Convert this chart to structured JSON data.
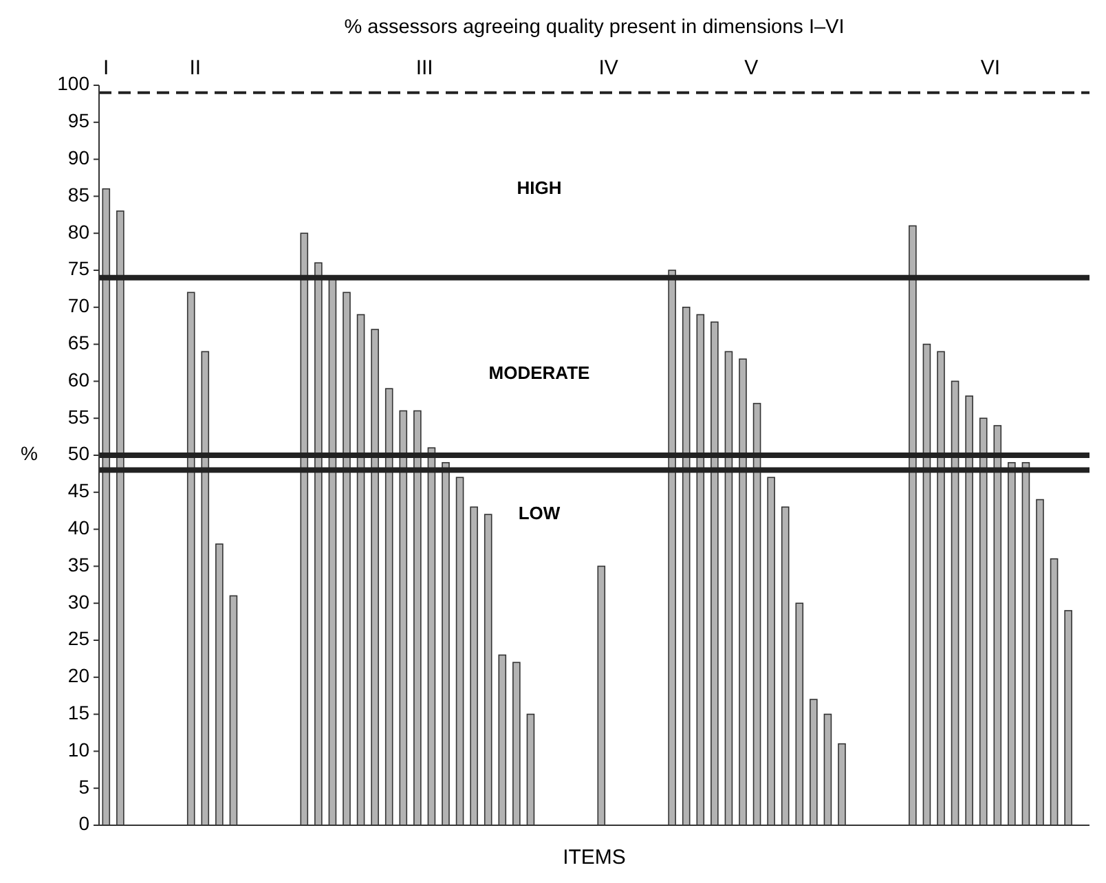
{
  "chart_data": {
    "type": "bar",
    "title": "% assessors agreeing quality present in dimensions I–VI",
    "xlabel": "ITEMS",
    "ylabel": "%",
    "categories": [
      null,
      null,
      null,
      null,
      null,
      null,
      null,
      null,
      null,
      null,
      null,
      null,
      null,
      null,
      null,
      null,
      null,
      null,
      null,
      null,
      null,
      null,
      null,
      null,
      null,
      null,
      null,
      null,
      null,
      null,
      null,
      null,
      null,
      null,
      null,
      null,
      null,
      null,
      null,
      null,
      null,
      null,
      null,
      null,
      null,
      null,
      null,
      null,
      null,
      null,
      null,
      null,
      null,
      null,
      null,
      null,
      null,
      null,
      null,
      null,
      null,
      null,
      null,
      null,
      null,
      null,
      null,
      null,
      null,
      null
    ],
    "values": [
      86,
      83,
      null,
      null,
      null,
      null,
      72,
      64,
      38,
      31,
      null,
      null,
      null,
      null,
      80,
      76,
      74,
      72,
      69,
      67,
      59,
      56,
      56,
      51,
      49,
      47,
      43,
      42,
      23,
      22,
      15,
      null,
      null,
      null,
      null,
      35,
      null,
      null,
      null,
      null,
      75,
      70,
      69,
      68,
      64,
      63,
      57,
      47,
      43,
      30,
      17,
      15,
      11,
      null,
      null,
      null,
      null,
      81,
      65,
      64,
      60,
      58,
      55,
      54,
      49,
      49,
      44,
      36,
      29,
      null
    ],
    "color": "#b3b3b3",
    "ylim": [
      0,
      100
    ],
    "yticks": [
      0,
      5,
      10,
      15,
      20,
      25,
      30,
      35,
      40,
      45,
      50,
      55,
      60,
      65,
      70,
      75,
      80,
      85,
      90,
      95,
      100
    ],
    "ref_lines": [
      {
        "axis": "y",
        "value": 99,
        "color": "#222222",
        "line_style": "dashed"
      },
      {
        "axis": "y",
        "value": 74,
        "color": "#222222",
        "line_style": "solid"
      },
      {
        "axis": "y",
        "value": 50,
        "color": "#222222",
        "line_style": "solid"
      },
      {
        "axis": "y",
        "value": 48,
        "color": "#222222",
        "line_style": "solid"
      }
    ],
    "annotations": [
      "I",
      "II",
      "III",
      "IV",
      "V",
      "VI",
      "HIGH",
      "MODERATE",
      "LOW"
    ]
  }
}
